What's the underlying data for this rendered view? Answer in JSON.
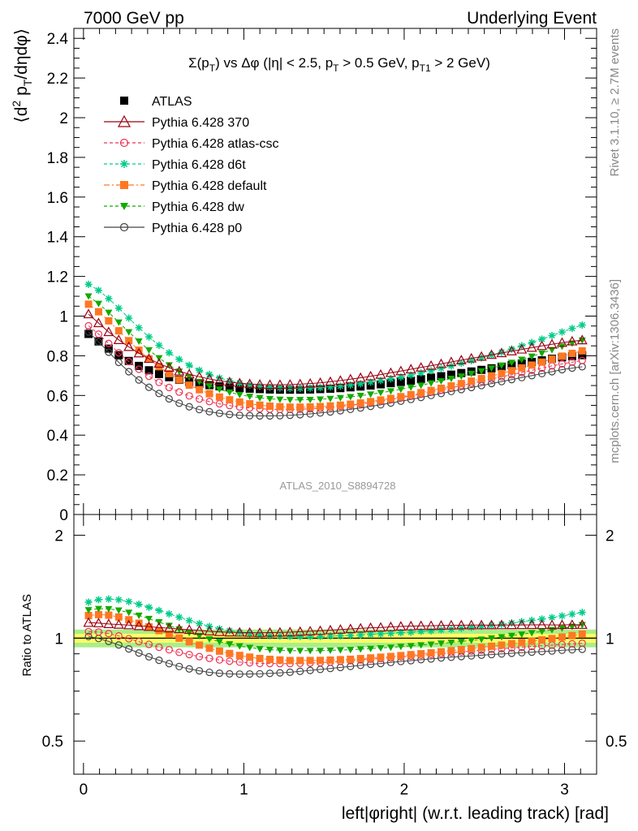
{
  "header": {
    "left": "7000 GeV pp",
    "right": "Underlying Event"
  },
  "side_labels": {
    "rivet": "Rivet 3.1.10, ≥ 2.7M events",
    "mcplots": "mcplots.cern.ch [arXiv:1306.3436]"
  },
  "colors": {
    "atlas": "#000000",
    "p370": "#990012",
    "atlas_csc": "#ee3355",
    "d6t": "#00cc88",
    "default": "#ff7722",
    "dw": "#11aa00",
    "p0": "#444444",
    "band_inner": "#ffff66",
    "band_outer": "#aaee88"
  },
  "chart_data": [
    {
      "type": "scatter",
      "title": "Σ(p_T) vs Δφ (|η| < 2.5, p_T > 0.5 GeV, p_T1 > 2 GeV)",
      "title_parts": {
        "sigma": "Σ(p",
        "sub1": "T",
        "mid": ") vs Δφ (|η| < 2.5, p",
        "sub2": "T",
        "mid2": " > 0.5 GeV, p",
        "sub3": "T1",
        "end": " > 2 GeV)"
      },
      "ylabel": "⟨d² p_T/dηdφ⟩",
      "ylabel_parts": {
        "pre": "⟨d",
        "sup": "2",
        "mid": " p",
        "sub": "T",
        "end": "/dηdφ⟩"
      },
      "xlim": [
        -0.06,
        3.2
      ],
      "ylim": [
        0,
        2.45
      ],
      "y_ticks": [
        "0",
        "0.2",
        "0.4",
        "0.6",
        "0.8",
        "1",
        "1.2",
        "1.4",
        "1.6",
        "1.8",
        "2",
        "2.2",
        "2.4"
      ],
      "watermark": "ATLAS_2010_S8894728",
      "legend_position": "top-left",
      "x": [
        0.0314,
        0.0942,
        0.1571,
        0.2199,
        0.2827,
        0.3456,
        0.4084,
        0.4712,
        0.5341,
        0.5969,
        0.6597,
        0.7226,
        0.7854,
        0.8482,
        0.9111,
        0.9739,
        1.0367,
        1.0996,
        1.1624,
        1.2252,
        1.2881,
        1.3509,
        1.4137,
        1.4765,
        1.5394,
        1.6022,
        1.665,
        1.7279,
        1.7907,
        1.8535,
        1.9164,
        1.9792,
        2.042,
        2.1049,
        2.1677,
        2.2305,
        2.2934,
        2.3562,
        2.419,
        2.4819,
        2.5447,
        2.6075,
        2.6704,
        2.7332,
        2.796,
        2.8589,
        2.9217,
        2.9845,
        3.0474,
        3.1102
      ],
      "series": [
        {
          "name": "ATLAS",
          "key": "atlas",
          "marker": "square-filled",
          "line": "none",
          "values": [
            0.91,
            0.872,
            0.836,
            0.803,
            0.774,
            0.749,
            0.727,
            0.708,
            0.692,
            0.679,
            0.668,
            0.659,
            0.652,
            0.646,
            0.641,
            0.637,
            0.634,
            0.632,
            0.63,
            0.629,
            0.629,
            0.629,
            0.63,
            0.632,
            0.634,
            0.637,
            0.641,
            0.645,
            0.65,
            0.656,
            0.662,
            0.668,
            0.675,
            0.682,
            0.69,
            0.697,
            0.705,
            0.713,
            0.721,
            0.729,
            0.737,
            0.745,
            0.753,
            0.761,
            0.769,
            0.777,
            0.785,
            0.792,
            0.798,
            0.803
          ]
        },
        {
          "name": "Pythia 6.428 370",
          "key": "p370",
          "marker": "triangle-open",
          "line": "solid",
          "values": [
            1.01,
            0.965,
            0.92,
            0.88,
            0.845,
            0.813,
            0.785,
            0.761,
            0.74,
            0.722,
            0.707,
            0.694,
            0.683,
            0.674,
            0.667,
            0.662,
            0.658,
            0.655,
            0.654,
            0.654,
            0.655,
            0.657,
            0.66,
            0.664,
            0.669,
            0.675,
            0.682,
            0.689,
            0.697,
            0.705,
            0.714,
            0.723,
            0.732,
            0.741,
            0.75,
            0.759,
            0.769,
            0.778,
            0.787,
            0.796,
            0.805,
            0.814,
            0.823,
            0.832,
            0.841,
            0.85,
            0.858,
            0.866,
            0.873,
            0.879
          ]
        },
        {
          "name": "Pythia 6.428 atlas-csc",
          "key": "atlas_csc",
          "marker": "circle-open",
          "line": "dashed",
          "values": [
            0.951,
            0.909,
            0.862,
            0.815,
            0.771,
            0.732,
            0.697,
            0.666,
            0.64,
            0.617,
            0.598,
            0.582,
            0.569,
            0.558,
            0.549,
            0.542,
            0.537,
            0.533,
            0.531,
            0.53,
            0.53,
            0.531,
            0.533,
            0.536,
            0.54,
            0.545,
            0.551,
            0.557,
            0.564,
            0.572,
            0.58,
            0.589,
            0.598,
            0.608,
            0.618,
            0.628,
            0.639,
            0.65,
            0.661,
            0.672,
            0.683,
            0.694,
            0.705,
            0.716,
            0.727,
            0.738,
            0.749,
            0.759,
            0.768,
            0.776
          ]
        },
        {
          "name": "Pythia 6.428 d6t",
          "key": "d6t",
          "marker": "star",
          "line": "dashed",
          "values": [
            1.16,
            1.13,
            1.088,
            1.04,
            0.99,
            0.941,
            0.895,
            0.853,
            0.815,
            0.782,
            0.752,
            0.727,
            0.706,
            0.688,
            0.674,
            0.662,
            0.653,
            0.646,
            0.641,
            0.638,
            0.636,
            0.636,
            0.637,
            0.639,
            0.643,
            0.647,
            0.653,
            0.659,
            0.667,
            0.675,
            0.684,
            0.693,
            0.703,
            0.714,
            0.725,
            0.737,
            0.749,
            0.762,
            0.775,
            0.789,
            0.803,
            0.818,
            0.834,
            0.85,
            0.867,
            0.884,
            0.902,
            0.92,
            0.938,
            0.955
          ]
        },
        {
          "name": "Pythia 6.428 default",
          "key": "default",
          "marker": "square-filled",
          "line": "dashdot",
          "values": [
            1.06,
            1.022,
            0.976,
            0.926,
            0.876,
            0.828,
            0.784,
            0.745,
            0.71,
            0.679,
            0.652,
            0.629,
            0.609,
            0.592,
            0.578,
            0.567,
            0.558,
            0.551,
            0.546,
            0.543,
            0.541,
            0.541,
            0.542,
            0.544,
            0.547,
            0.551,
            0.556,
            0.562,
            0.569,
            0.577,
            0.585,
            0.594,
            0.604,
            0.614,
            0.625,
            0.636,
            0.648,
            0.66,
            0.672,
            0.685,
            0.698,
            0.711,
            0.725,
            0.739,
            0.753,
            0.768,
            0.783,
            0.798,
            0.812,
            0.825
          ]
        },
        {
          "name": "Pythia 6.428 dw",
          "key": "dw",
          "marker": "triangle-down-filled",
          "line": "dashed",
          "values": [
            1.1,
            1.063,
            1.018,
            0.969,
            0.92,
            0.873,
            0.829,
            0.789,
            0.753,
            0.721,
            0.693,
            0.669,
            0.648,
            0.631,
            0.616,
            0.604,
            0.595,
            0.588,
            0.583,
            0.58,
            0.578,
            0.578,
            0.579,
            0.581,
            0.584,
            0.588,
            0.593,
            0.599,
            0.606,
            0.614,
            0.622,
            0.631,
            0.641,
            0.651,
            0.662,
            0.673,
            0.685,
            0.697,
            0.71,
            0.723,
            0.737,
            0.751,
            0.766,
            0.781,
            0.797,
            0.813,
            0.83,
            0.847,
            0.863,
            0.878
          ]
        },
        {
          "name": "Pythia 6.428 p0",
          "key": "p0",
          "marker": "circle-open",
          "line": "solid",
          "values": [
            0.92,
            0.87,
            0.818,
            0.767,
            0.72,
            0.678,
            0.641,
            0.61,
            0.583,
            0.561,
            0.543,
            0.529,
            0.518,
            0.51,
            0.504,
            0.5,
            0.498,
            0.497,
            0.497,
            0.498,
            0.5,
            0.503,
            0.507,
            0.512,
            0.517,
            0.523,
            0.53,
            0.537,
            0.545,
            0.553,
            0.562,
            0.571,
            0.58,
            0.59,
            0.6,
            0.61,
            0.62,
            0.63,
            0.64,
            0.65,
            0.66,
            0.67,
            0.68,
            0.69,
            0.7,
            0.71,
            0.72,
            0.73,
            0.738,
            0.745
          ]
        }
      ]
    },
    {
      "type": "scatter",
      "ylabel": "Ratio to ATLAS",
      "xlabel": "left|φright| (w.r.t. leading track) [rad]",
      "xlim": [
        -0.06,
        3.2
      ],
      "ylim": [
        0.4,
        2.3
      ],
      "y_scale": "log",
      "x_ticks": [
        "0",
        "1",
        "2",
        "3"
      ],
      "y_ticks": [
        {
          "value": 0.5,
          "label": "0.5"
        },
        {
          "value": 1,
          "label": "1"
        },
        {
          "value": 2,
          "label": "2"
        }
      ],
      "band": {
        "inner": [
          0.97,
          1.03
        ],
        "outer": [
          0.94,
          1.06
        ]
      },
      "reference_line": 1
    }
  ]
}
